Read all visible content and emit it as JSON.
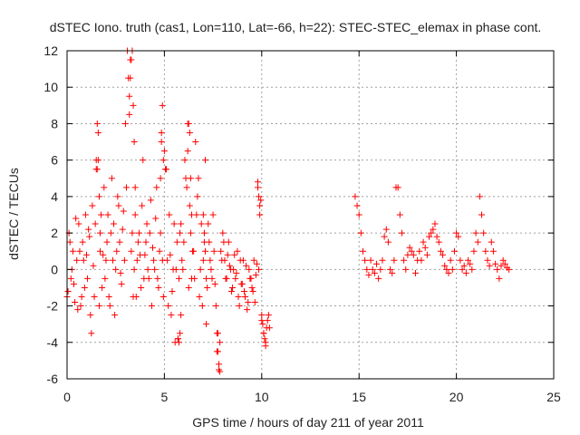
{
  "chart_data": {
    "type": "scatter",
    "title": "dSTEC Iono. truth (cas1, Lon=110, Lat=-66, h=22): STEC-STEC_elemax in phase cont.",
    "xlabel": "GPS time / hours of day 211 of year 2011",
    "ylabel": "dSTEC  / TECUs",
    "xlim": [
      0,
      25
    ],
    "ylim": [
      -6,
      12
    ],
    "xticks": [
      0,
      5,
      10,
      15,
      20,
      25
    ],
    "yticks": [
      -6,
      -4,
      -2,
      0,
      2,
      4,
      6,
      8,
      10,
      12
    ],
    "grid": true,
    "legend": "none",
    "marker": "plus",
    "color": "#ff0000",
    "series": [
      {
        "x": [
          0.0,
          0.1,
          0.2,
          0.3,
          0.4,
          0.5,
          0.6,
          0.7,
          0.8,
          0.9,
          1.0,
          1.1,
          1.2,
          1.3,
          1.4,
          1.5,
          1.6,
          1.7,
          1.8,
          1.9,
          2.0,
          2.1,
          2.2,
          2.3,
          2.4,
          2.5,
          2.6,
          2.7,
          2.8,
          2.9,
          3.0,
          3.1,
          3.2,
          3.3,
          3.4,
          3.5,
          3.6,
          3.7,
          3.8,
          3.9,
          4.0,
          4.1,
          4.2,
          4.3,
          4.4,
          4.5,
          4.6,
          4.7,
          4.8,
          4.9,
          5.0,
          5.1,
          5.2,
          5.3,
          5.4,
          5.5,
          5.6,
          5.7,
          5.8,
          5.9,
          6.0,
          6.1,
          6.2,
          6.3,
          6.4,
          6.5,
          6.6,
          6.7,
          6.8,
          6.9,
          7.0,
          7.1,
          7.2,
          7.3,
          7.4,
          7.5,
          7.6,
          7.7,
          7.8,
          7.9,
          8.0,
          8.1,
          8.2,
          8.3,
          8.4,
          8.5,
          8.6,
          8.7,
          8.8,
          8.9,
          9.0,
          9.1,
          9.2,
          9.3,
          9.4,
          9.5,
          9.6,
          9.7,
          9.8,
          9.9,
          10.0,
          10.1,
          10.2,
          10.3,
          10.4,
          0.05,
          0.15,
          0.25,
          0.35,
          0.45,
          0.55,
          0.65,
          0.75,
          0.85,
          0.95,
          1.05,
          1.15,
          1.25,
          1.35,
          1.45,
          1.55,
          1.65,
          1.75,
          1.85,
          1.95,
          2.05,
          2.15,
          2.25,
          2.35,
          2.45,
          2.55,
          2.65,
          2.75,
          2.85,
          2.95,
          3.05,
          3.15,
          3.25,
          3.35,
          3.45,
          3.55,
          3.65,
          3.75,
          3.85,
          3.95,
          4.05,
          4.15,
          4.25,
          4.35,
          4.45,
          4.55,
          4.65,
          4.75,
          4.85,
          4.95,
          5.05,
          5.15,
          5.25,
          5.35,
          5.45,
          5.55,
          5.65,
          5.75,
          5.85,
          5.95,
          6.05,
          6.15,
          6.25,
          6.35,
          6.45,
          6.55,
          6.65,
          6.75,
          6.85,
          6.95,
          7.05,
          7.15,
          7.25,
          7.35,
          7.45,
          7.55,
          7.65,
          7.75,
          7.85,
          7.95,
          8.05,
          8.15,
          8.25,
          8.35,
          8.45,
          8.55,
          8.65,
          8.75,
          8.85,
          8.95,
          9.05,
          9.15,
          9.25,
          9.35,
          9.45,
          9.55,
          9.65,
          9.75,
          9.85,
          9.95,
          10.05,
          10.15,
          10.25,
          10.35,
          1.5,
          1.55,
          1.6,
          1.65,
          1.7,
          3.2,
          3.25,
          3.3,
          3.35,
          3.4,
          3.45,
          3.5,
          4.8,
          4.85,
          4.9,
          4.95,
          6.2,
          6.25,
          6.3,
          6.35,
          6.4,
          7.0,
          7.05,
          7.1,
          7.15,
          5.7,
          5.75,
          5.8,
          5.85,
          7.7,
          7.75,
          7.8,
          7.85,
          9.8,
          9.85,
          9.9,
          10.0,
          10.1,
          10.2,
          14.8,
          14.9,
          15.0,
          15.1,
          15.2,
          15.3,
          15.4,
          15.5,
          15.6,
          15.7,
          15.8,
          15.9,
          16.0,
          16.1,
          16.2,
          16.3,
          16.4,
          16.5,
          16.6,
          16.7,
          16.8,
          16.9,
          17.0,
          17.1,
          17.2,
          17.3,
          17.4,
          17.5,
          17.6,
          17.7,
          17.8,
          17.9,
          18.0,
          18.1,
          18.2,
          18.3,
          18.4,
          18.5,
          18.6,
          18.7,
          18.8,
          18.9,
          19.0,
          19.1,
          19.2,
          19.3,
          19.4,
          19.5,
          19.6,
          19.7,
          19.8,
          19.9,
          20.0,
          20.1,
          20.2,
          20.3,
          20.4,
          20.5,
          20.6,
          20.7,
          20.8,
          20.9,
          21.0,
          21.1,
          21.2,
          21.3,
          21.4,
          21.5,
          21.6,
          21.7,
          21.8,
          21.9,
          22.0,
          22.1,
          22.2,
          22.3,
          22.4,
          22.5,
          22.6,
          22.7
        ],
        "y": [
          -1.5,
          2.0,
          -0.5,
          1.0,
          -1.8,
          0.5,
          2.5,
          -2.0,
          1.5,
          -1.0,
          0.8,
          2.2,
          -2.5,
          3.5,
          -1.5,
          6.0,
          7.5,
          1.0,
          -1.0,
          4.5,
          0.5,
          3.0,
          -2.0,
          5.0,
          2.5,
          0.0,
          4.0,
          1.5,
          -0.8,
          3.2,
          8.0,
          12.0,
          9.5,
          1.0,
          -1.5,
          3.0,
          0.5,
          2.0,
          -1.0,
          6.0,
          0.8,
          2.5,
          -0.5,
          3.8,
          1.2,
          0.0,
          4.5,
          -1.0,
          2.0,
          0.5,
          6.5,
          5.5,
          -2.0,
          0.8,
          -1.2,
          2.5,
          0.0,
          -3.8,
          2.0,
          0.5,
          1.5,
          5.0,
          8.0,
          3.5,
          -0.5,
          1.0,
          7.0,
          4.0,
          -1.5,
          2.5,
          0.5,
          6.0,
          -1.0,
          1.5,
          0.0,
          3.0,
          -0.8,
          -4.5,
          -5.5,
          1.0,
          2.0,
          0.5,
          -0.5,
          1.5,
          0.0,
          -1.0,
          0.8,
          -0.2,
          -1.5,
          0.5,
          -0.8,
          -1.2,
          0.2,
          -1.8,
          -0.5,
          -1.0,
          0.5,
          -0.3,
          4.5,
          3.0,
          -2.5,
          -3.5,
          -4.0,
          -2.8,
          -3.2,
          -1.2,
          1.5,
          0.0,
          -0.8,
          2.8,
          -2.2,
          1.0,
          -1.5,
          0.5,
          3.0,
          -0.5,
          1.8,
          -3.5,
          0.2,
          2.5,
          5.5,
          -2.0,
          3.0,
          0.8,
          -0.5,
          1.5,
          -1.5,
          2.0,
          0.5,
          -2.5,
          1.0,
          3.5,
          -0.2,
          2.2,
          0.5,
          4.5,
          10.5,
          11.5,
          2.0,
          0.0,
          -1.5,
          1.5,
          0.8,
          3.5,
          -0.5,
          1.5,
          0.0,
          2.0,
          -2.0,
          0.5,
          2.8,
          -0.5,
          1.0,
          7.0,
          -1.5,
          5.5,
          0.5,
          3.0,
          -2.5,
          0.0,
          -4.0,
          1.5,
          -0.5,
          2.5,
          0.0,
          6.0,
          4.5,
          -1.0,
          2.0,
          1.0,
          -0.5,
          3.0,
          5.0,
          0.0,
          -2.0,
          1.5,
          -3.0,
          2.5,
          0.5,
          -0.5,
          1.0,
          -2.0,
          -3.5,
          -4.0,
          0.5,
          1.5,
          -0.5,
          0.8,
          0.2,
          -1.2,
          0.0,
          -0.5,
          1.0,
          -2.0,
          -0.8,
          0.5,
          -1.5,
          -2.2,
          0.0,
          -0.5,
          -1.2,
          -1.8,
          0.3,
          0.0,
          3.8,
          -3.0,
          -3.8,
          -3.2,
          -2.5,
          5.5,
          8.0,
          6.0,
          4.0,
          2.0,
          8.5,
          10.5,
          11.5,
          12.0,
          9.0,
          7.0,
          4.5,
          5.0,
          7.5,
          9.0,
          6.0,
          6.5,
          8.0,
          7.5,
          5.0,
          3.0,
          3.0,
          2.0,
          1.0,
          -0.5,
          -3.8,
          -4.0,
          -3.5,
          -2.5,
          -3.5,
          -4.5,
          -5.2,
          -5.6,
          4.8,
          4.0,
          3.5,
          -2.8,
          -3.5,
          -4.2,
          4.0,
          3.5,
          3.0,
          2.0,
          1.0,
          0.5,
          0.0,
          -0.3,
          0.5,
          0.0,
          -0.2,
          0.3,
          -0.5,
          0.0,
          0.5,
          1.8,
          2.2,
          1.5,
          0.0,
          -0.2,
          0.5,
          4.5,
          4.5,
          3.0,
          2.0,
          0.5,
          0.0,
          0.8,
          1.2,
          1.0,
          0.8,
          -0.2,
          0.5,
          1.0,
          0.5,
          1.5,
          1.2,
          0.8,
          1.8,
          2.0,
          2.2,
          2.5,
          1.8,
          1.5,
          1.0,
          0.8,
          0.2,
          0.0,
          -0.2,
          0.5,
          0.0,
          1.0,
          2.0,
          1.8,
          0.5,
          0.0,
          0.2,
          -0.2,
          0.5,
          0.3,
          0.0,
          1.0,
          2.0,
          1.5,
          4.0,
          3.0,
          2.0,
          1.0,
          0.5,
          0.2,
          1.5,
          1.0,
          0.3,
          0.0,
          -0.5,
          0.2,
          0.5,
          0.3,
          0.1,
          0.0
        ]
      }
    ]
  }
}
